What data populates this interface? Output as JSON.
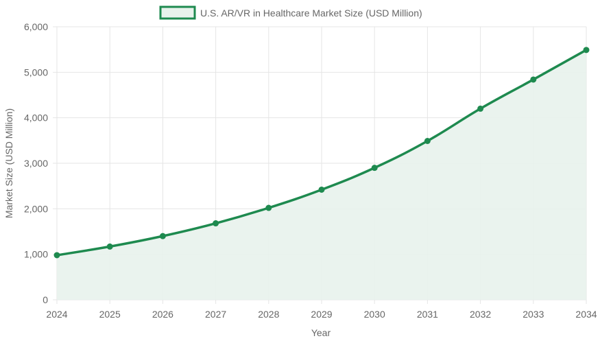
{
  "colors": {
    "line": "#1e8a4f",
    "fill": "#e8f2ec",
    "grid": "#e5e5e5",
    "text": "#666666"
  },
  "chart_data": {
    "type": "area",
    "x": [
      "2024",
      "2025",
      "2026",
      "2027",
      "2028",
      "2029",
      "2030",
      "2031",
      "2032",
      "2033",
      "2034"
    ],
    "series": [
      {
        "name": "U.S. AR/VR in Healthcare Market Size (USD Million)",
        "values": [
          980,
          1170,
          1400,
          1680,
          2020,
          2420,
          2900,
          3490,
          4200,
          4840,
          5490
        ]
      }
    ],
    "xlabel": "Year",
    "ylabel": "Market Size (USD Million)",
    "ylim": [
      0,
      6000
    ],
    "yticks": [
      "0",
      "1,000",
      "2,000",
      "3,000",
      "4,000",
      "5,000",
      "6,000"
    ],
    "grid": true,
    "legend": "top-center"
  }
}
